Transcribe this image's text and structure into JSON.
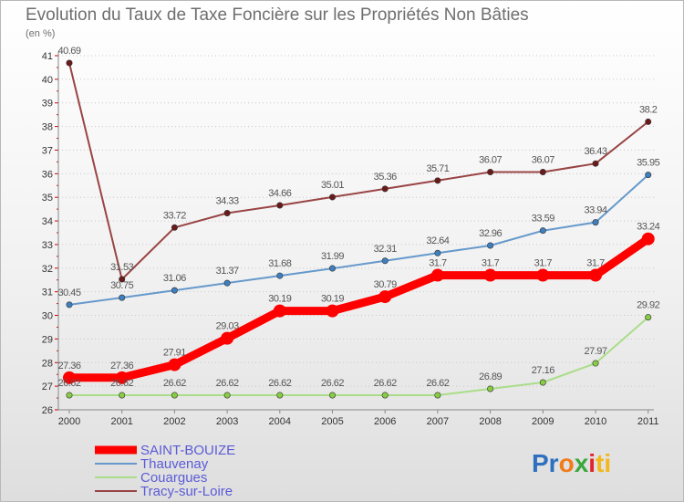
{
  "chart_data": {
    "type": "line",
    "title": "Evolution du Taux de Taxe Foncière sur les Propriétés Non Bâties",
    "unit_label": "(en %)",
    "x": [
      "2000",
      "2001",
      "2002",
      "2003",
      "2004",
      "2005",
      "2006",
      "2007",
      "2008",
      "2009",
      "2010",
      "2011"
    ],
    "ylim": [
      26,
      41
    ],
    "y_ticks": [
      26,
      27,
      28,
      29,
      30,
      31,
      32,
      33,
      34,
      35,
      36,
      37,
      38,
      39,
      40,
      41
    ],
    "grid": "horizontal-dotted",
    "legend_position": "bottom-left",
    "series": [
      {
        "name": "SAINT-BOUIZE",
        "color": "#ff0000",
        "emphasis": true,
        "values": [
          27.36,
          27.36,
          27.91,
          29.03,
          30.19,
          30.19,
          30.79,
          31.7,
          31.7,
          31.7,
          31.7,
          33.24
        ],
        "labels": [
          "27.36",
          "27.36",
          "27.91",
          "29.03",
          "30.19",
          "30.19",
          "30.79",
          "31.7",
          "31.7",
          "31.7",
          "31.7",
          "33.24"
        ]
      },
      {
        "name": "Thauvenay",
        "color": "#6699cc",
        "marker": "#3f7fbf",
        "values": [
          30.45,
          30.75,
          31.06,
          31.37,
          31.68,
          31.99,
          32.31,
          32.64,
          32.96,
          33.59,
          33.94,
          35.95
        ],
        "labels": [
          "30.45",
          "30.75",
          "31.06",
          "31.37",
          "31.68",
          "31.99",
          "32.31",
          "32.64",
          "32.96",
          "33.59",
          "33.94",
          "35.95"
        ]
      },
      {
        "name": "Couargues",
        "color": "#aadd88",
        "marker": "#88cc44",
        "values": [
          26.62,
          26.62,
          26.62,
          26.62,
          26.62,
          26.62,
          26.62,
          26.62,
          26.89,
          27.16,
          27.97,
          29.92
        ],
        "labels": [
          "26.62",
          "26.62",
          "26.62",
          "26.62",
          "26.62",
          "26.62",
          "26.62",
          "26.62",
          "26.89",
          "27.16",
          "27.97",
          "29.92"
        ]
      },
      {
        "name": "Tracy-sur-Loire",
        "color": "#994444",
        "marker": "#6a1a1a",
        "values": [
          40.69,
          31.53,
          33.72,
          34.33,
          34.66,
          35.01,
          35.36,
          35.71,
          36.07,
          36.07,
          36.43,
          38.2
        ],
        "labels": [
          "40.69",
          "31.53",
          "33.72",
          "34.33",
          "34.66",
          "35.01",
          "35.36",
          "35.71",
          "36.07",
          "36.07",
          "36.43",
          "38.2"
        ]
      }
    ]
  },
  "logo": {
    "text": "Proxiti"
  }
}
